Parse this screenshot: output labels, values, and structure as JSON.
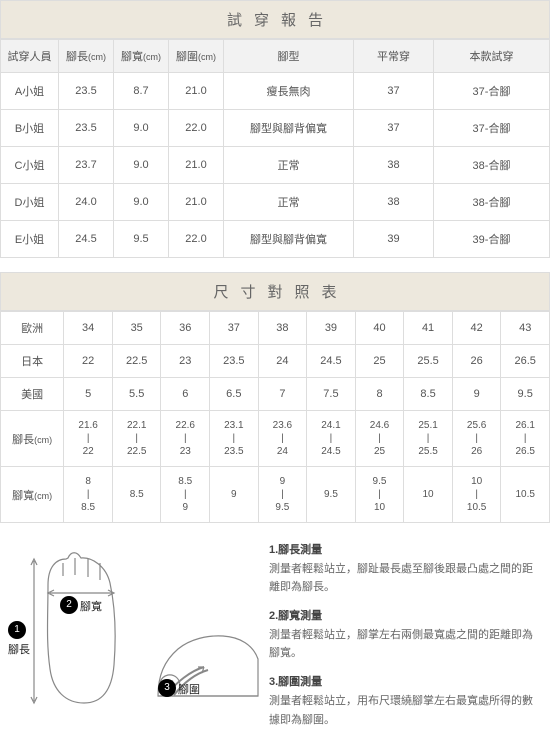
{
  "report": {
    "title": "試穿報告",
    "cols": [
      "試穿人員",
      "腳長",
      "腳寬",
      "腳圍",
      "腳型",
      "平常穿",
      "本款試穿"
    ],
    "unit": "(cm)",
    "rows": [
      [
        "A小姐",
        "23.5",
        "8.7",
        "21.0",
        "瘦長無肉",
        "37",
        "37-合腳"
      ],
      [
        "B小姐",
        "23.5",
        "9.0",
        "22.0",
        "腳型與腳背偏寬",
        "37",
        "37-合腳"
      ],
      [
        "C小姐",
        "23.7",
        "9.0",
        "21.0",
        "正常",
        "38",
        "38-合腳"
      ],
      [
        "D小姐",
        "24.0",
        "9.0",
        "21.0",
        "正常",
        "38",
        "38-合腳"
      ],
      [
        "E小姐",
        "24.5",
        "9.5",
        "22.0",
        "腳型與腳背偏寬",
        "39",
        "39-合腳"
      ]
    ]
  },
  "size": {
    "title": "尺寸對照表",
    "labels": {
      "eu": "歐洲",
      "jp": "日本",
      "us": "美國",
      "len": "腳長",
      "wid": "腳寬"
    },
    "unit": "(cm)",
    "eu": [
      "34",
      "35",
      "36",
      "37",
      "38",
      "39",
      "40",
      "41",
      "42",
      "43"
    ],
    "jp": [
      "22",
      "22.5",
      "23",
      "23.5",
      "24",
      "24.5",
      "25",
      "25.5",
      "26",
      "26.5"
    ],
    "us": [
      "5",
      "5.5",
      "6",
      "6.5",
      "7",
      "7.5",
      "8",
      "8.5",
      "9",
      "9.5"
    ],
    "len": [
      {
        "a": "21.6",
        "b": "22"
      },
      {
        "a": "22.1",
        "b": "22.5"
      },
      {
        "a": "22.6",
        "b": "23"
      },
      {
        "a": "23.1",
        "b": "23.5"
      },
      {
        "a": "23.6",
        "b": "24"
      },
      {
        "a": "24.1",
        "b": "24.5"
      },
      {
        "a": "24.6",
        "b": "25"
      },
      {
        "a": "25.1",
        "b": "25.5"
      },
      {
        "a": "25.6",
        "b": "26"
      },
      {
        "a": "26.1",
        "b": "26.5"
      }
    ],
    "wid": [
      {
        "a": "8",
        "b": "8.5"
      },
      {
        "s": "8.5"
      },
      {
        "a": "8.5",
        "b": "9"
      },
      {
        "s": "9"
      },
      {
        "a": "9",
        "b": "9.5"
      },
      {
        "s": "9.5"
      },
      {
        "a": "9.5",
        "b": "10"
      },
      {
        "s": "10"
      },
      {
        "a": "10",
        "b": "10.5"
      },
      {
        "s": "10.5"
      }
    ]
  },
  "diagram": {
    "b1": "1",
    "b2": "2",
    "b3": "3",
    "l1": "腳長",
    "l2": "腳寬",
    "l3": "腳圍"
  },
  "desc": {
    "t1": "1.腳長測量",
    "d1": "測量者輕鬆站立，腳趾最長處至腳後跟最凸處之間的距離即為腳長。",
    "t2": "2.腳寬測量",
    "d2": "測量者輕鬆站立，腳掌左右兩側最寬處之間的距離即為腳寬。",
    "t3": "3.腳圍測量",
    "d3": "測量者輕鬆站立，用布尺環繞腳掌左右最寬處所得的數據即為腳圍。"
  }
}
